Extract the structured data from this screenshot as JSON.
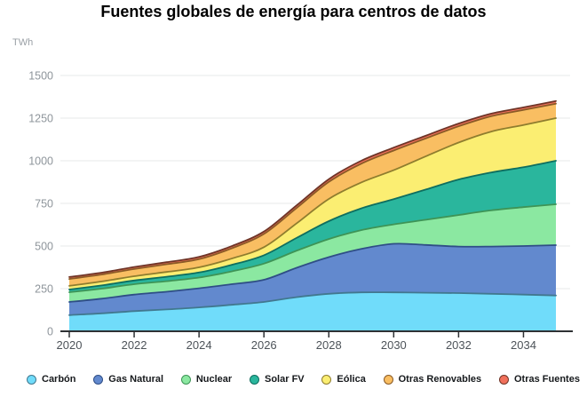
{
  "header": {
    "title": "Fuentes globales de energía para centros de datos"
  },
  "axes": {
    "y_unit_label": "TWh",
    "y_ticks": [
      0,
      250,
      500,
      750,
      1000,
      1250,
      1500
    ],
    "x_ticks": [
      2020,
      2022,
      2024,
      2026,
      2028,
      2030,
      2032,
      2034
    ]
  },
  "chart_data": {
    "type": "area",
    "stacked": true,
    "title": "Fuentes globales de energía para centros de datos",
    "ylabel": "TWh",
    "xlabel": "",
    "ylim": [
      0,
      1500
    ],
    "grid": true,
    "legend_position": "bottom",
    "x": [
      2020,
      2021,
      2022,
      2023,
      2024,
      2025,
      2026,
      2027,
      2028,
      2029,
      2030,
      2031,
      2032,
      2033,
      2034,
      2035
    ],
    "series": [
      {
        "name": "Carbón",
        "color": "#70DCFA",
        "stroke": "#41788f",
        "values": [
          95,
          105,
          118,
          128,
          140,
          155,
          172,
          200,
          220,
          228,
          228,
          226,
          224,
          220,
          215,
          210
        ]
      },
      {
        "name": "Gas Natural",
        "color": "#6289CE",
        "stroke": "#2f4e86",
        "values": [
          77,
          86,
          97,
          104,
          112,
          121,
          130,
          172,
          215,
          255,
          285,
          280,
          273,
          277,
          285,
          295
        ]
      },
      {
        "name": "Nuclear",
        "color": "#8BE8A1",
        "stroke": "#3e9456",
        "values": [
          57,
          59,
          61,
          62,
          63,
          75,
          95,
          100,
          106,
          110,
          114,
          148,
          185,
          212,
          228,
          240
        ]
      },
      {
        "name": "Solar FV",
        "color": "#2AB69D",
        "stroke": "#0e6e5f",
        "values": [
          16,
          19,
          22,
          26,
          30,
          38,
          49,
          75,
          105,
          128,
          148,
          178,
          208,
          222,
          234,
          255
        ]
      },
      {
        "name": "Eólica",
        "color": "#FBEE72",
        "stroke": "#8f7d2e",
        "values": [
          21,
          23,
          25,
          28,
          30,
          37,
          47,
          85,
          130,
          152,
          170,
          195,
          217,
          240,
          248,
          250
        ]
      },
      {
        "name": "Otras Renovables",
        "color": "#F9BE62",
        "stroke": "#8a5a26",
        "values": [
          41,
          41,
          42,
          45,
          48,
          60,
          78,
          90,
          100,
          110,
          115,
          105,
          95,
          90,
          88,
          85
        ]
      },
      {
        "name": "Otras Fuentes",
        "color": "#F1705B",
        "stroke": "#6e3527",
        "values": [
          11,
          11,
          12,
          12,
          13,
          13,
          14,
          15,
          16,
          17,
          17,
          16,
          16,
          15,
          15,
          15
        ]
      }
    ],
    "style": {
      "grid_color": "#e7e8ea",
      "axis_color": "#2e3134",
      "x_label_color": "#4d5359",
      "y_label_color": "#8e959b"
    }
  }
}
